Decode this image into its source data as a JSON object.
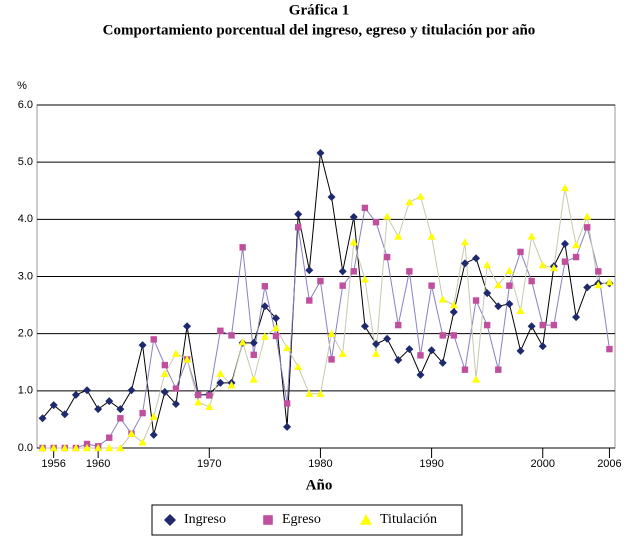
{
  "chart_data": {
    "type": "line",
    "title": "Gráfica 1",
    "subtitle": "Comportamiento porcentual del ingreso, egreso y titulación por año",
    "y_label": "%",
    "x_label": "Año",
    "x": [
      1955,
      1956,
      1957,
      1958,
      1959,
      1960,
      1961,
      1962,
      1963,
      1964,
      1965,
      1966,
      1967,
      1968,
      1969,
      1970,
      1971,
      1972,
      1973,
      1974,
      1975,
      1976,
      1977,
      1978,
      1979,
      1980,
      1981,
      1982,
      1983,
      1984,
      1985,
      1986,
      1987,
      1988,
      1989,
      1990,
      1991,
      1992,
      1993,
      1994,
      1995,
      1996,
      1997,
      1998,
      1999,
      2000,
      2001,
      2002,
      2003,
      2004,
      2005,
      2006
    ],
    "xlim": [
      1954.5,
      2006.5
    ],
    "xticks": [
      1956,
      1960,
      1970,
      1980,
      1990,
      2000,
      2006
    ],
    "ylim": [
      0,
      6
    ],
    "yticks": [
      {
        "value": 0,
        "label": "0.0"
      },
      {
        "value": 1,
        "label": "1.0"
      },
      {
        "value": 2,
        "label": "2.0"
      },
      {
        "value": 3,
        "label": "3.0"
      },
      {
        "value": 4,
        "label": "4.0"
      },
      {
        "value": 5,
        "label": "5.0"
      },
      {
        "value": 6,
        "label": "6.0"
      }
    ],
    "grid": true,
    "legend": "bottom",
    "series": [
      {
        "name": "Ingreso",
        "color": "#1f2a6e",
        "line_color": "#000000",
        "marker": "diamond",
        "values": [
          0.52,
          0.75,
          0.59,
          0.93,
          1.01,
          0.68,
          0.82,
          0.68,
          1.01,
          1.8,
          0.23,
          0.98,
          0.77,
          2.13,
          0.93,
          0.94,
          1.14,
          1.14,
          1.84,
          1.84,
          2.48,
          2.27,
          0.37,
          4.09,
          3.11,
          5.16,
          4.39,
          3.09,
          4.04,
          2.13,
          1.82,
          1.91,
          1.54,
          1.73,
          1.28,
          1.71,
          1.49,
          2.38,
          3.23,
          3.32,
          2.71,
          2.48,
          2.52,
          1.7,
          2.13,
          1.78,
          3.18,
          3.57,
          2.29,
          2.81,
          2.88,
          2.88
        ]
      },
      {
        "name": "Egreso",
        "color": "#c04f9e",
        "line_color": "#8c80c0",
        "marker": "square",
        "values": [
          0,
          0,
          0,
          0,
          0.07,
          0.03,
          0.18,
          0.52,
          0.25,
          0.61,
          1.9,
          1.45,
          1.04,
          1.55,
          0.93,
          0.92,
          2.05,
          1.97,
          3.51,
          1.63,
          2.83,
          1.96,
          0.78,
          3.86,
          2.58,
          2.92,
          1.55,
          2.84,
          3.09,
          4.2,
          3.95,
          3.34,
          2.15,
          3.09,
          1.62,
          2.84,
          1.97,
          1.97,
          1.37,
          2.58,
          2.15,
          1.37,
          2.84,
          3.43,
          2.92,
          2.15,
          2.15,
          3.26,
          3.34,
          3.86,
          3.09,
          1.73
        ]
      },
      {
        "name": "Titulación",
        "color": "#ffff00",
        "line_color": "#c8c8b0",
        "marker": "triangle",
        "values": [
          0,
          0,
          0,
          0,
          0,
          0,
          0,
          0,
          0.25,
          0.1,
          0.55,
          1.3,
          1.65,
          1.55,
          0.8,
          0.72,
          1.3,
          1.1,
          1.85,
          1.2,
          1.95,
          2.1,
          1.75,
          1.42,
          0.95,
          0.95,
          2.0,
          1.65,
          3.6,
          2.95,
          1.65,
          4.05,
          3.7,
          4.3,
          4.4,
          3.7,
          2.6,
          2.5,
          3.6,
          1.2,
          3.2,
          2.85,
          3.1,
          2.4,
          3.7,
          3.2,
          3.15,
          4.55,
          3.55,
          4.05,
          2.85,
          2.9
        ]
      }
    ]
  }
}
